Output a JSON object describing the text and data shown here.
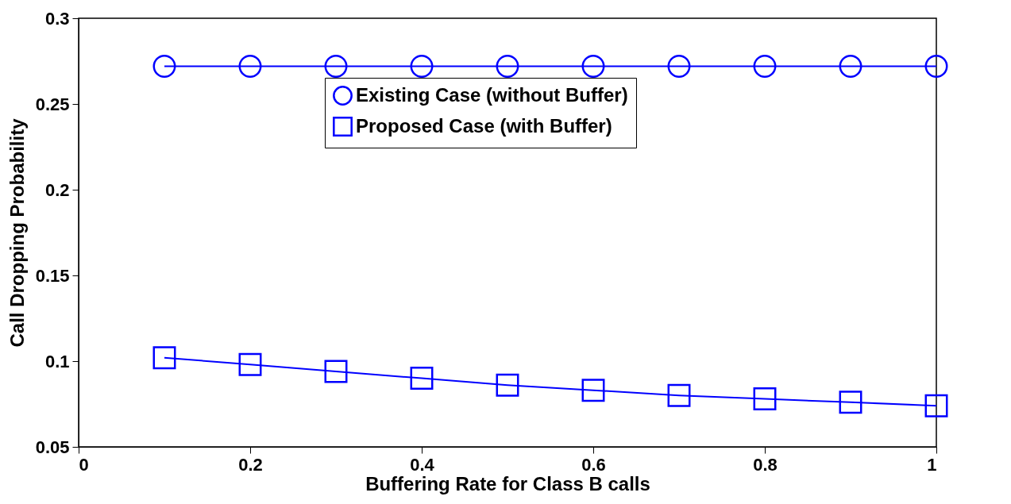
{
  "chart_data": {
    "type": "line",
    "xlabel": "Buffering Rate for Class B calls",
    "ylabel": "Call Dropping Probability",
    "x": [
      0.1,
      0.2,
      0.3,
      0.4,
      0.5,
      0.6,
      0.7,
      0.8,
      0.9,
      1.0
    ],
    "series": [
      {
        "name": "Existing Case (without Buffer)",
        "color": "#0000ff",
        "marker": "circle",
        "values": [
          0.272,
          0.272,
          0.272,
          0.272,
          0.272,
          0.272,
          0.272,
          0.272,
          0.272,
          0.272
        ]
      },
      {
        "name": "Proposed Case (with Buffer)",
        "color": "#0000ff",
        "marker": "square",
        "values": [
          0.102,
          0.098,
          0.094,
          0.09,
          0.086,
          0.083,
          0.08,
          0.078,
          0.076,
          0.074
        ]
      }
    ],
    "xlim": [
      0,
      1
    ],
    "xticks": [
      0,
      0.2,
      0.4,
      0.6,
      0.8,
      1
    ],
    "ylim": [
      0.05,
      0.3
    ],
    "yticks": [
      0.05,
      0.1,
      0.15,
      0.2,
      0.25,
      0.3
    ],
    "grid": false,
    "legend": "top right",
    "line_style": "solid"
  }
}
